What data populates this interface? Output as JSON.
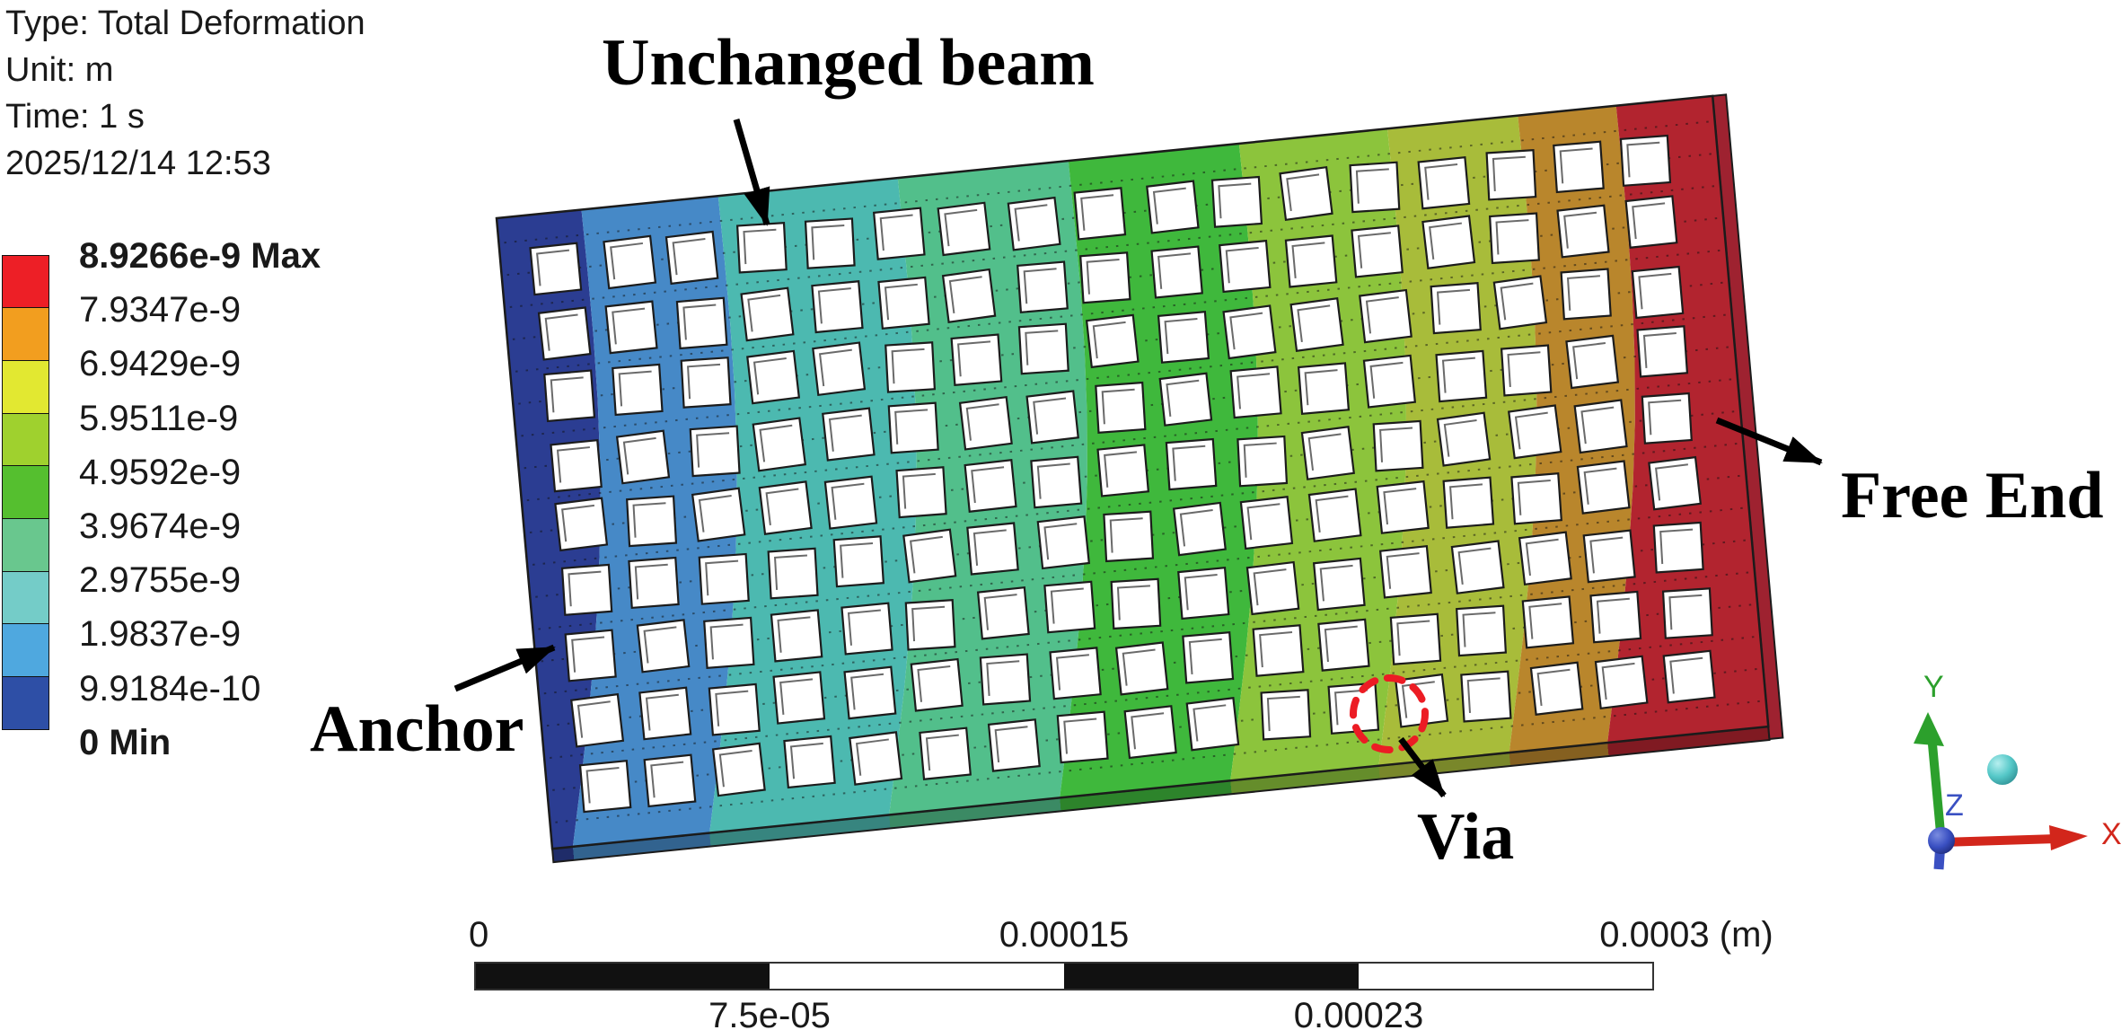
{
  "header": {
    "type_line": "Type: Total Deformation",
    "unit_line": "Unit: m",
    "time_line": "Time: 1 s",
    "date_line": "2025/12/14 12:53"
  },
  "legend": {
    "labels": [
      "8.9266e-9 Max",
      "7.9347e-9",
      "6.9429e-9",
      "5.9511e-9",
      "4.9592e-9",
      "3.9674e-9",
      "2.9755e-9",
      "1.9837e-9",
      "9.9184e-10",
      "0 Min"
    ],
    "colors": [
      "#ED1F26",
      "#F29E1F",
      "#E2E831",
      "#9FD12E",
      "#55BF2F",
      "#69C78E",
      "#74CCC8",
      "#4FA8DF",
      "#2E4FA6"
    ]
  },
  "beam": {
    "band_colors": [
      "#2B3D92",
      "#4689C7",
      "#4CB9B0",
      "#52BF8B",
      "#3FB83C",
      "#8CC43C",
      "#A8BC3A",
      "#B9862C",
      "#B2242F"
    ],
    "right_face_color": "#9E2230",
    "outline_color": "#1b1b1b",
    "hole_fill": "#ffffff",
    "via_circle_color": "#EC1C24"
  },
  "annotations": {
    "unchanged_beam": "Unchanged beam",
    "anchor": "Anchor",
    "free_end": "Free End",
    "via": "Via"
  },
  "scale_bar": {
    "tick_top_left": "0",
    "tick_top_mid": "0.00015",
    "tick_top_right": "0.0003 (m)",
    "tick_bottom_left": "7.5e-05",
    "tick_bottom_right": "0.00023"
  },
  "triad": {
    "x_label": "X",
    "y_label": "Y",
    "z_label": "Z",
    "x_color": "#D2261B",
    "y_color": "#2CA02C",
    "z_color": "#3A50C2",
    "iso_ball_color": "#55C8C8"
  },
  "chart_data": {
    "type": "heatmap",
    "title": "Total Deformation",
    "unit": "m",
    "time": "1 s",
    "timestamp": "2025/12/14 12:53",
    "max": 8.9266e-09,
    "min": 0,
    "legend_values": [
      8.9266e-09,
      7.9347e-09,
      6.9429e-09,
      5.9511e-09,
      4.9592e-09,
      3.9674e-09,
      2.9755e-09,
      1.9837e-09,
      9.9184e-10,
      0
    ],
    "legend_colors_max_to_min": [
      "#ED1F26",
      "#F29E1F",
      "#E2E831",
      "#9FD12E",
      "#55BF2F",
      "#69C78E",
      "#74CCC8",
      "#4FA8DF",
      "#2E4FA6"
    ],
    "gradient_direction": "deformation increases from Anchor (left, 0 Min, blue) to Free End (right, 8.9266e-9 Max, red)",
    "annotated_features": [
      "Unchanged beam",
      "Anchor",
      "Free End",
      "Via"
    ],
    "scale_bar": {
      "unit": "m",
      "min": 0,
      "max": 0.0003,
      "ticks": [
        0,
        7.5e-05,
        0.00015,
        0.00023,
        0.0003
      ]
    }
  }
}
